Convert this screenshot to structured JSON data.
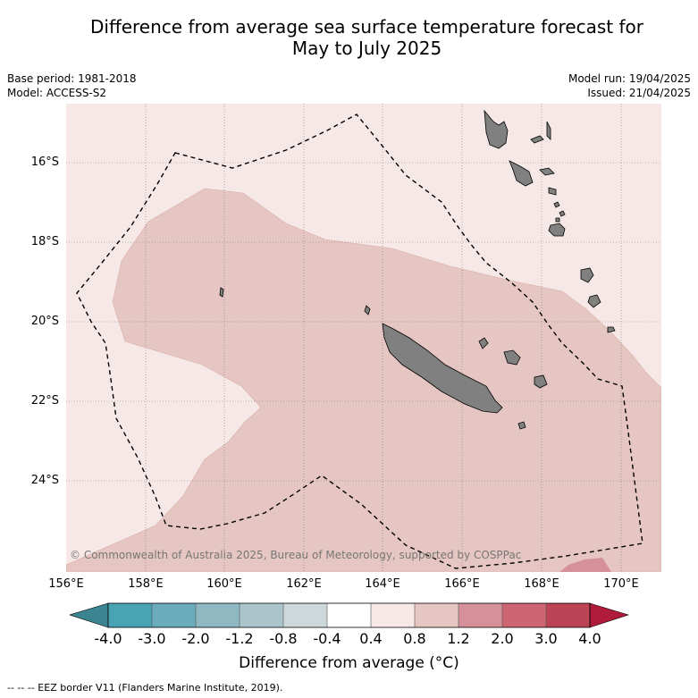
{
  "title_line1": "Difference from average sea surface temperature forecast for",
  "title_line2": "May to July 2025",
  "meta": {
    "base_period": "Base period: 1981-2018",
    "model": "Model: ACCESS-S2",
    "model_run": "Model run: 19/04/2025",
    "issued": "Issued: 21/04/2025"
  },
  "map": {
    "lat_labels": [
      "16°S",
      "18°S",
      "20°S",
      "22°S",
      "24°S"
    ],
    "lon_labels": [
      "156°E",
      "158°E",
      "160°E",
      "162°E",
      "164°E",
      "166°E",
      "168°E",
      "170°E"
    ],
    "copyright": "© Commonwealth of Australia 2025, Bureau of Meteorology, supported by COSPPac",
    "colors": {
      "background_anomaly": "#f5e8e6",
      "warm_anomaly": "#e6c6c2",
      "strong_anomaly": "#d6909a",
      "land": "#808080"
    }
  },
  "colorbar": {
    "labels": [
      "-4.0",
      "-3.0",
      "-2.0",
      "-1.2",
      "-0.8",
      "-0.4",
      "0.4",
      "0.8",
      "1.2",
      "2.0",
      "3.0",
      "4.0"
    ],
    "colors": [
      "#3b8590",
      "#48a4b3",
      "#6aacbb",
      "#8fb8c3",
      "#aac6ca",
      "#ccd8da",
      "#ffffff",
      "#f5e8e6",
      "#e6c6c2",
      "#d6909a",
      "#cd6672",
      "#bc4455",
      "#b01b3c"
    ],
    "title": "Difference from average (°C)"
  },
  "legend_note": "--  --  -- EEZ border V11 (Flanders Marine Institute, 2019)."
}
